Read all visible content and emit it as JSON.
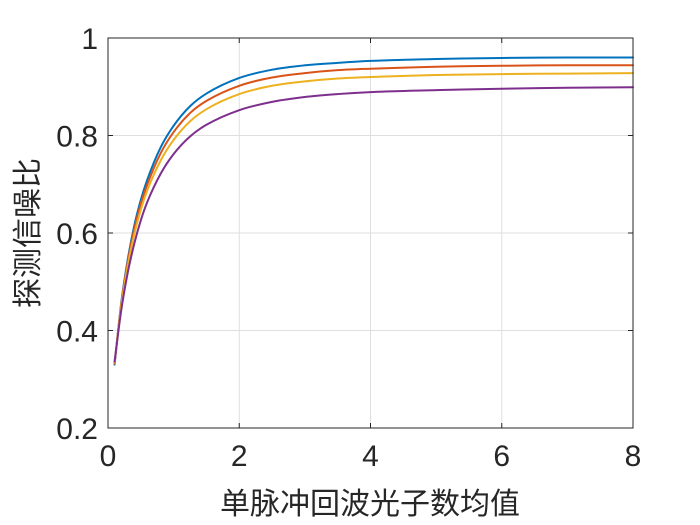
{
  "chart_data": {
    "type": "line",
    "xlabel": "单脉冲回波光子数均值",
    "ylabel": "探测信噪比",
    "xlim": [
      0,
      8
    ],
    "ylim": [
      0.2,
      1
    ],
    "xticks": [
      0,
      2,
      4,
      6,
      8
    ],
    "yticks": [
      0.2,
      0.4,
      0.6,
      0.8,
      1
    ],
    "xtick_labels": [
      "0",
      "2",
      "4",
      "6",
      "8"
    ],
    "ytick_labels": [
      "0.2",
      "0.4",
      "0.6",
      "0.8",
      "1"
    ],
    "grid": true,
    "legend": "none",
    "x": [
      0.1,
      0.2,
      0.3,
      0.4,
      0.5,
      0.6,
      0.8,
      1.0,
      1.25,
      1.5,
      2.0,
      2.5,
      3.0,
      3.5,
      4.0,
      5.0,
      6.0,
      7.0,
      8.0
    ],
    "series": [
      {
        "color": "#0072BD",
        "values": [
          0.33,
          0.455,
          0.545,
          0.615,
          0.668,
          0.71,
          0.775,
          0.82,
          0.86,
          0.886,
          0.918,
          0.935,
          0.944,
          0.949,
          0.953,
          0.957,
          0.959,
          0.96,
          0.96
        ]
      },
      {
        "color": "#D95319",
        "values": [
          0.332,
          0.452,
          0.54,
          0.608,
          0.66,
          0.7,
          0.763,
          0.807,
          0.846,
          0.871,
          0.902,
          0.919,
          0.928,
          0.934,
          0.937,
          0.941,
          0.943,
          0.944,
          0.944
        ]
      },
      {
        "color": "#EDB120",
        "values": [
          0.334,
          0.448,
          0.532,
          0.597,
          0.648,
          0.688,
          0.748,
          0.791,
          0.829,
          0.854,
          0.885,
          0.902,
          0.911,
          0.917,
          0.92,
          0.924,
          0.926,
          0.927,
          0.928
        ]
      },
      {
        "color": "#7E2F8E",
        "values": [
          0.336,
          0.44,
          0.518,
          0.578,
          0.626,
          0.664,
          0.721,
          0.762,
          0.798,
          0.822,
          0.852,
          0.869,
          0.879,
          0.885,
          0.889,
          0.893,
          0.896,
          0.898,
          0.899
        ]
      }
    ]
  }
}
